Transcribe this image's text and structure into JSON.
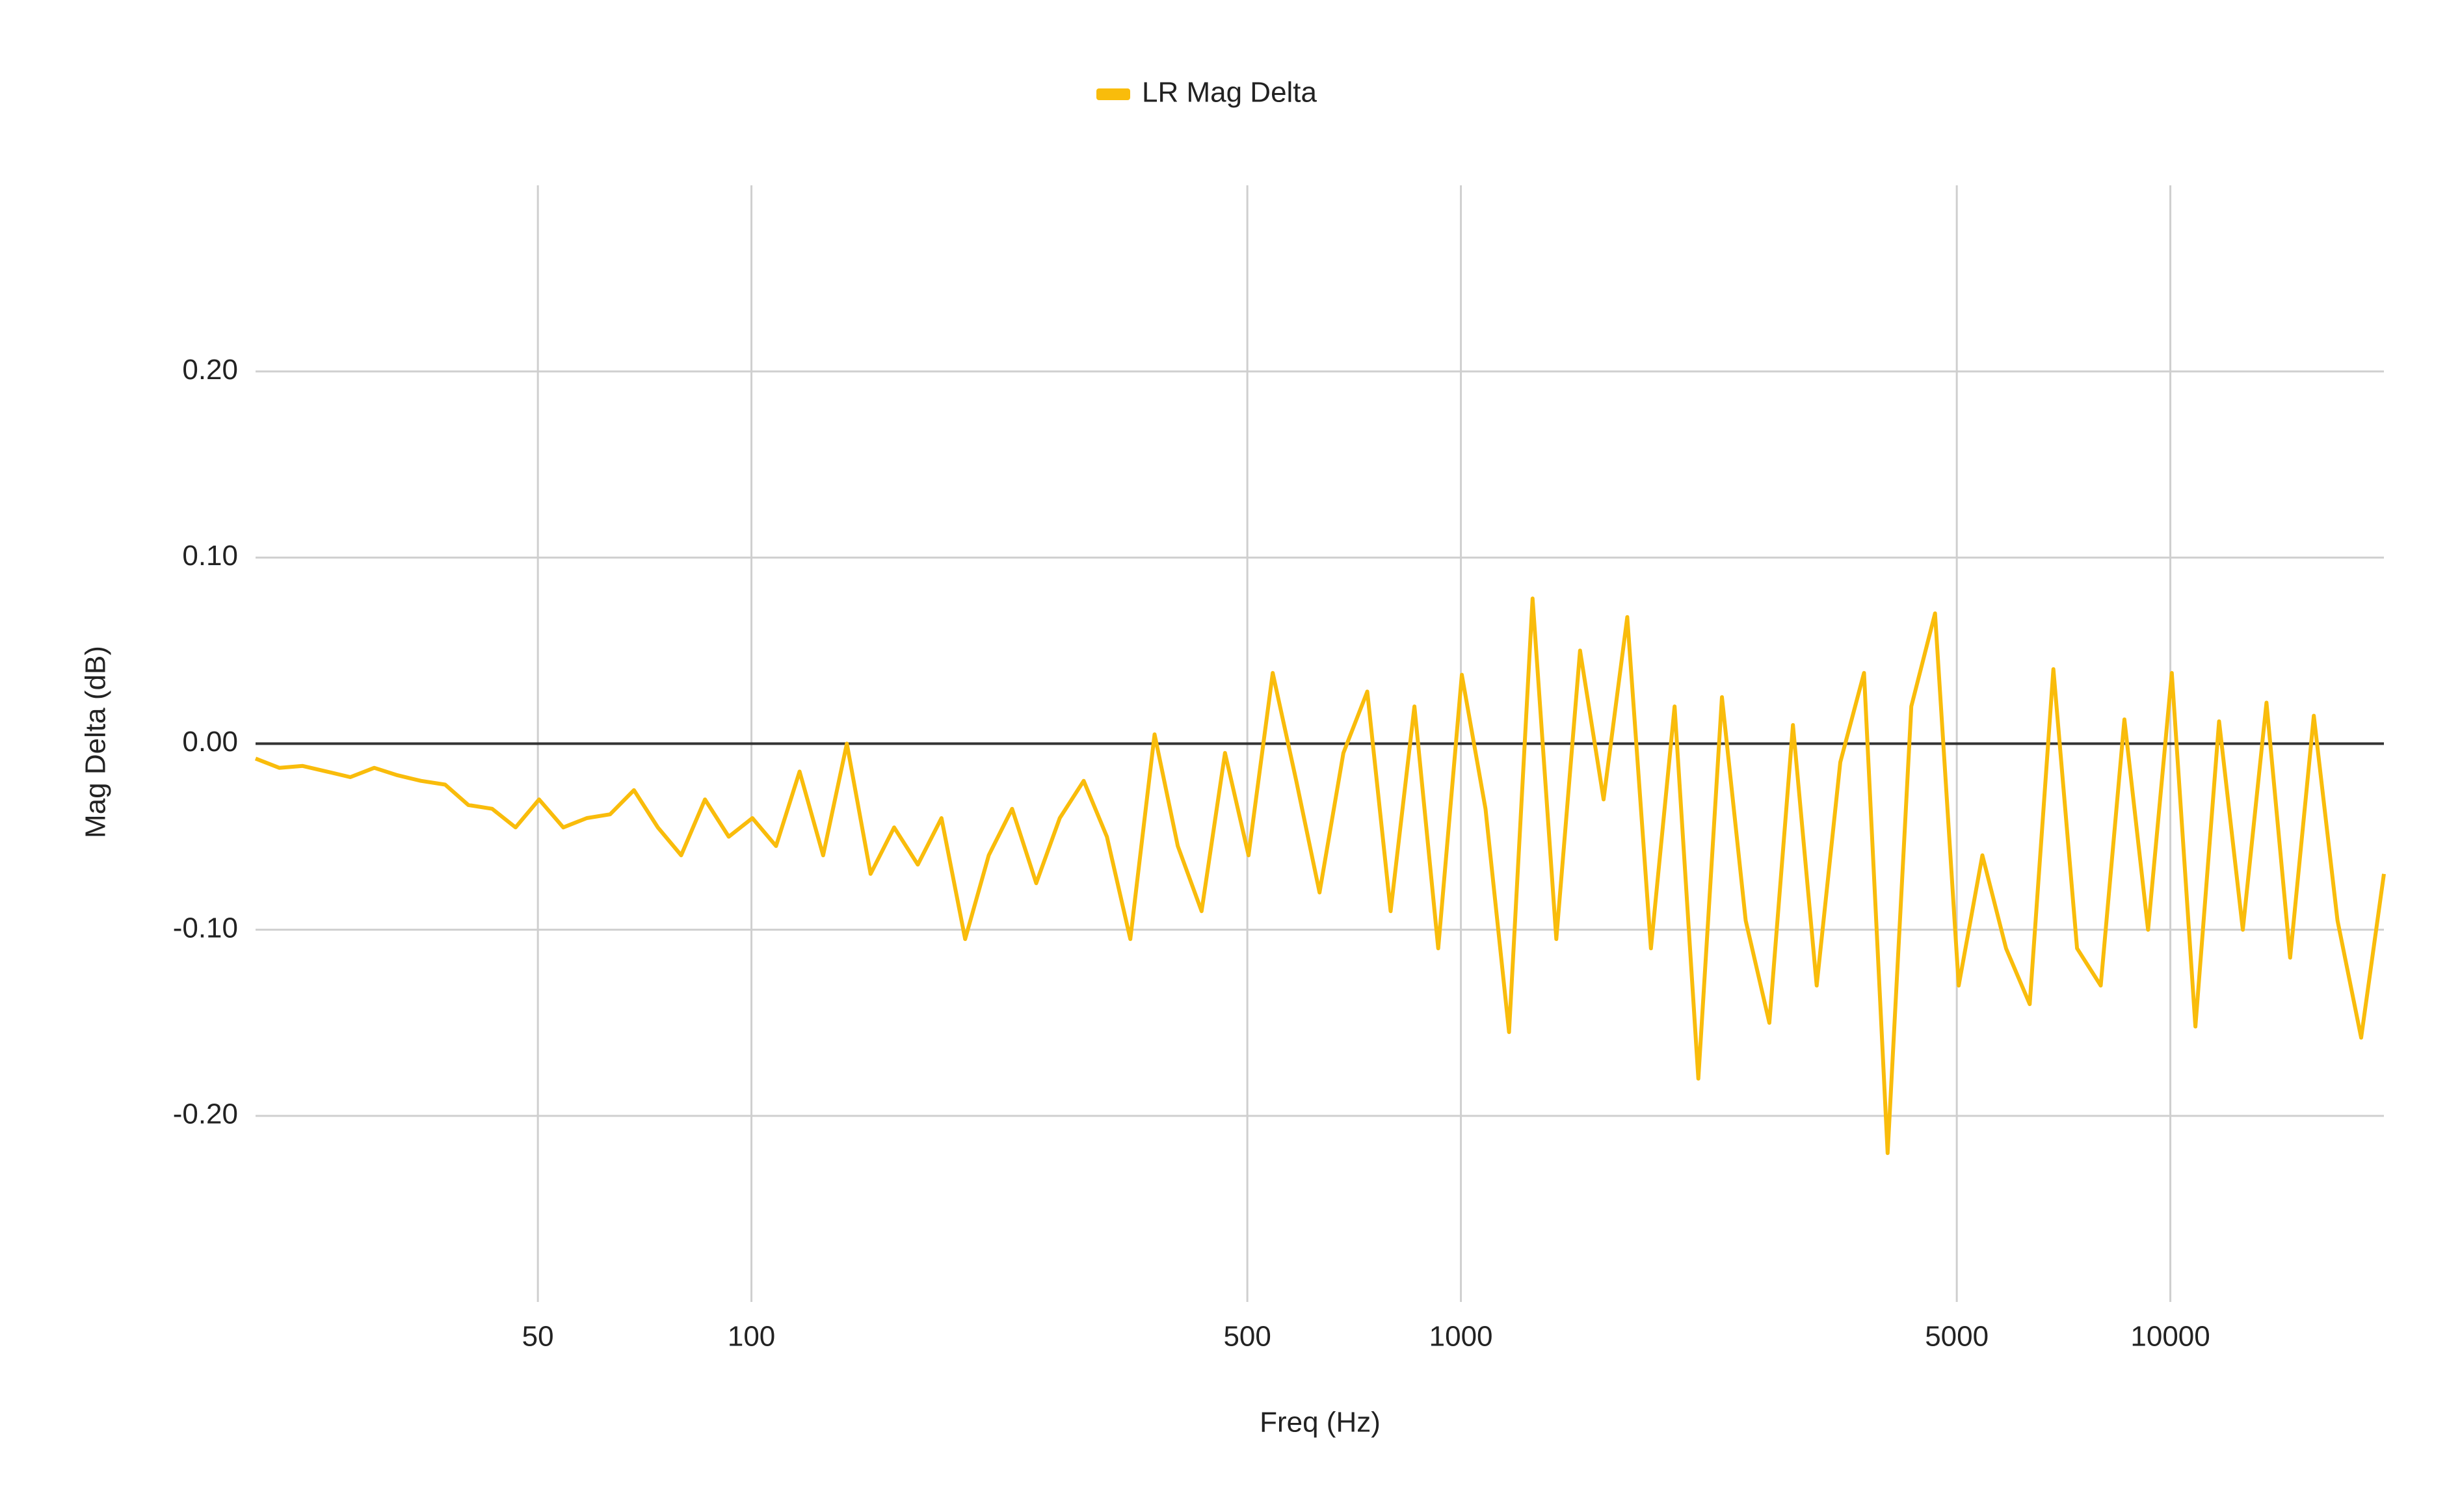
{
  "chart_data": {
    "type": "line",
    "x_label": "Freq (Hz)",
    "y_label": "Mag Delta (dB)",
    "x": [
      20,
      21.6,
      23.3,
      25.2,
      27.2,
      29.4,
      31.7,
      34.2,
      37,
      39.9,
      43.1,
      46.5,
      50.2,
      54.3,
      58.6,
      63.2,
      68.3,
      73.8,
      79.6,
      86,
      92.9,
      100.3,
      108.3,
      116.9,
      126.2,
      136.3,
      147.2,
      158.9,
      171.6,
      185.3,
      200.1,
      216,
      233,
      252,
      272,
      294,
      317,
      342,
      370,
      399,
      431,
      465,
      502,
      543,
      586,
      632,
      683,
      738,
      796,
      860,
      929,
      1003,
      1083,
      1169,
      1262,
      1363,
      1472,
      1589,
      1716,
      1853,
      2001,
      2161,
      2333,
      2520,
      2721,
      2938,
      3173,
      3426,
      3700,
      3995,
      4314,
      4659,
      5031,
      5433,
      5867,
      6335,
      6841,
      7388,
      7978,
      8615,
      9303,
      10046,
      10848,
      11714,
      12650,
      13660,
      14751,
      15929,
      17201,
      18575,
      20000
    ],
    "series": [
      {
        "name": "LR Mag Delta",
        "color": "#f9bc0b",
        "values": [
          -0.008,
          -0.013,
          -0.012,
          -0.015,
          -0.018,
          -0.013,
          -0.017,
          -0.02,
          -0.022,
          -0.033,
          -0.035,
          -0.045,
          -0.03,
          -0.045,
          -0.04,
          -0.038,
          -0.025,
          -0.045,
          -0.06,
          -0.03,
          -0.05,
          -0.04,
          -0.055,
          -0.015,
          -0.06,
          0,
          -0.07,
          -0.045,
          -0.065,
          -0.04,
          -0.105,
          -0.06,
          -0.035,
          -0.075,
          -0.04,
          -0.02,
          -0.05,
          -0.105,
          0.005,
          -0.055,
          -0.09,
          -0.005,
          -0.06,
          0.038,
          -0.02,
          -0.08,
          -0.005,
          0.028,
          -0.09,
          0.02,
          -0.11,
          0.037,
          -0.035,
          -0.155,
          0.078,
          -0.105,
          0.05,
          -0.03,
          0.068,
          -0.11,
          0.02,
          -0.18,
          0.025,
          -0.095,
          -0.15,
          0.01,
          -0.13,
          -0.01,
          0.038,
          -0.22,
          0.02,
          0.07,
          -0.13,
          -0.06,
          -0.11,
          -0.14,
          0.04,
          -0.11,
          -0.13,
          0.013,
          -0.1,
          0.038,
          -0.152,
          0.012,
          -0.1,
          0.022,
          -0.115,
          0.015,
          -0.095,
          -0.158,
          -0.07
        ]
      }
    ],
    "xlim": [
      20,
      20000
    ],
    "xscale": "log",
    "xticks": [
      50,
      100,
      500,
      1000,
      5000,
      10000
    ],
    "ylim": [
      -0.3,
      0.3
    ],
    "yticks": [
      {
        "value": -0.2,
        "label": "-0.20"
      },
      {
        "value": -0.1,
        "label": "-0.10"
      },
      {
        "value": 0,
        "label": "0.00"
      },
      {
        "value": 0.1,
        "label": "0.10"
      },
      {
        "value": 0.2,
        "label": "0.20"
      }
    ],
    "grid": true,
    "legend": "top"
  }
}
